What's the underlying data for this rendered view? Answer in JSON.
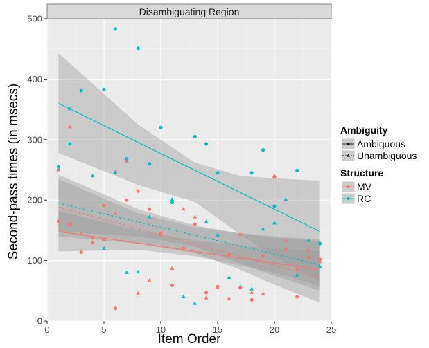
{
  "chart_data": {
    "type": "scatter",
    "facet_label": "Disambiguating Region",
    "xlabel": "Item Order",
    "ylabel": "Second-pass times (in msecs)",
    "xlim": [
      0,
      25
    ],
    "ylim": [
      0,
      500
    ],
    "x_ticks": [
      0,
      5,
      10,
      15,
      20,
      25
    ],
    "y_ticks": [
      0,
      100,
      200,
      300,
      400,
      500
    ],
    "grid": true,
    "legend_position": "right",
    "colors": {
      "MV": "#F8766D",
      "RC": "#00BFC4"
    },
    "legends": [
      {
        "title": "Ambiguity",
        "key": "ambiguity",
        "entries": [
          {
            "label": "Ambiguous",
            "shape": "circle",
            "linetype": "solid"
          },
          {
            "label": "Unambiguous",
            "shape": "triangle",
            "linetype": "dashed"
          }
        ]
      },
      {
        "title": "Structure",
        "key": "structure",
        "entries": [
          {
            "label": "MV",
            "color_key": "MV"
          },
          {
            "label": "RC",
            "color_key": "RC"
          }
        ]
      }
    ],
    "series": [
      {
        "name": "RC / Ambiguous",
        "structure": "RC",
        "ambiguity": "Ambiguous",
        "points": [
          [
            1,
            255
          ],
          [
            2,
            293
          ],
          [
            3,
            381
          ],
          [
            5,
            383
          ],
          [
            6,
            483
          ],
          [
            7,
            268
          ],
          [
            8,
            451
          ],
          [
            9,
            260
          ],
          [
            10,
            320
          ],
          [
            11,
            196
          ],
          [
            13,
            305
          ],
          [
            14,
            293
          ],
          [
            15,
            245
          ],
          [
            18,
            245
          ],
          [
            19,
            283
          ],
          [
            20,
            190
          ],
          [
            22,
            249
          ],
          [
            24,
            128
          ]
        ],
        "fit": {
          "x": [
            1,
            24
          ],
          "y": [
            360,
            148
          ]
        },
        "band": {
          "x": [
            1,
            8,
            13,
            17,
            20,
            24
          ],
          "upper": [
            443,
            325,
            262,
            240,
            236,
            232
          ],
          "lower": [
            278,
            225,
            197,
            143,
            106,
            65
          ]
        }
      },
      {
        "name": "RC / Unambiguous",
        "structure": "RC",
        "ambiguity": "Unambiguous",
        "points": [
          [
            1,
            252
          ],
          [
            2,
            351
          ],
          [
            4,
            240
          ],
          [
            5,
            120
          ],
          [
            6,
            246
          ],
          [
            7,
            80
          ],
          [
            8,
            81
          ],
          [
            9,
            172
          ],
          [
            11,
            201
          ],
          [
            12,
            40
          ],
          [
            13,
            29
          ],
          [
            14,
            164
          ],
          [
            15,
            142
          ],
          [
            16,
            72
          ],
          [
            17,
            57
          ],
          [
            18,
            53
          ],
          [
            19,
            152
          ],
          [
            20,
            162
          ],
          [
            21,
            201
          ],
          [
            22,
            76
          ],
          [
            23,
            133
          ],
          [
            24,
            90
          ]
        ],
        "fit": {
          "x": [
            1,
            24
          ],
          "y": [
            195,
            93
          ]
        },
        "band": {
          "x": [
            1,
            8,
            13,
            17,
            20,
            24
          ],
          "upper": [
            242,
            185,
            158,
            145,
            140,
            135
          ],
          "lower": [
            148,
            140,
            123,
            95,
            75,
            50
          ]
        }
      },
      {
        "name": "MV / Ambiguous",
        "structure": "MV",
        "ambiguity": "Ambiguous",
        "points": [
          [
            1,
            165
          ],
          [
            2,
            160
          ],
          [
            3,
            114
          ],
          [
            4,
            138
          ],
          [
            5,
            191
          ],
          [
            6,
            21
          ],
          [
            7,
            200
          ],
          [
            8,
            215
          ],
          [
            9,
            185
          ],
          [
            10,
            145
          ],
          [
            11,
            59
          ],
          [
            12,
            120
          ],
          [
            13,
            160
          ],
          [
            14,
            47
          ],
          [
            15,
            57
          ],
          [
            16,
            110
          ],
          [
            17,
            55
          ],
          [
            18,
            35
          ],
          [
            19,
            108
          ],
          [
            20,
            238
          ],
          [
            21,
            118
          ],
          [
            22,
            40
          ],
          [
            23,
            105
          ],
          [
            24,
            102
          ]
        ],
        "fit": {
          "x": [
            1,
            24
          ],
          "y": [
            148,
            85
          ]
        },
        "band": {
          "x": [
            1,
            8,
            13,
            17,
            20,
            24
          ],
          "upper": [
            182,
            150,
            133,
            125,
            120,
            115
          ],
          "lower": [
            115,
            118,
            107,
            92,
            80,
            58
          ]
        }
      },
      {
        "name": "MV / Unambiguous",
        "structure": "MV",
        "ambiguity": "Unambiguous",
        "points": [
          [
            1,
            250
          ],
          [
            2,
            321
          ],
          [
            3,
            144
          ],
          [
            4,
            130
          ],
          [
            5,
            135
          ],
          [
            6,
            178
          ],
          [
            7,
            264
          ],
          [
            8,
            46
          ],
          [
            9,
            67
          ],
          [
            10,
            143
          ],
          [
            11,
            87
          ],
          [
            12,
            185
          ],
          [
            13,
            172
          ],
          [
            14,
            38
          ],
          [
            15,
            55
          ],
          [
            16,
            37
          ],
          [
            17,
            143
          ],
          [
            18,
            47
          ],
          [
            19,
            45
          ],
          [
            20,
            240
          ],
          [
            21,
            133
          ],
          [
            22,
            86
          ],
          [
            23,
            117
          ],
          [
            24,
            98
          ]
        ],
        "fit": {
          "x": [
            1,
            24
          ],
          "y": [
            188,
            72
          ]
        },
        "band": {
          "x": [
            1,
            8,
            13,
            17,
            20,
            24
          ],
          "upper": [
            235,
            178,
            155,
            145,
            138,
            132
          ],
          "lower": [
            140,
            128,
            112,
            85,
            60,
            30
          ]
        }
      }
    ]
  }
}
